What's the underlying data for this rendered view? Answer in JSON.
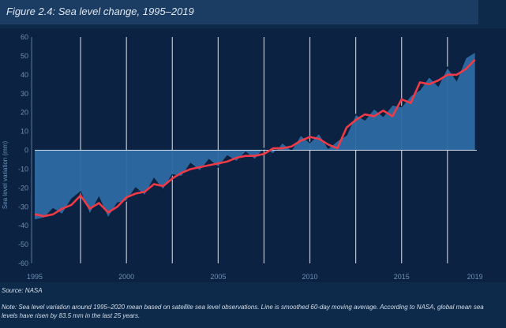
{
  "header": {
    "title": "Figure 2.4: Sea level change, 1995–2019"
  },
  "source": "Source: NASA",
  "note": "Note: Sea level variation around 1995–2020 mean based on satellite sea level observations. Line is smoothed 60-day moving average. According to NASA, global mean sea levels have risen by 83.5 mm in the last 25 years.",
  "colors": {
    "background": "#0e2a4a",
    "plot_background": "#0b2242",
    "area_fill": "#2d6aa3",
    "raw_dark": "#0a1d38",
    "smooth_line": "#ee3b47",
    "axis_text": "#6d8fb3",
    "grid": "#d8e2ee"
  },
  "chart_data": {
    "type": "area",
    "title": "Figure 2.4: Sea level change, 1995–2019",
    "ylabel": "Sea level variation (mm)",
    "xlabel": "",
    "xlim": [
      1995,
      2019.1
    ],
    "ylim": [
      -60,
      60
    ],
    "x_ticks": [
      1995,
      2000,
      2005,
      2010,
      2015,
      2019
    ],
    "y_ticks": [
      60,
      50,
      40,
      30,
      20,
      10,
      0,
      -10,
      -20,
      -30,
      -40,
      -50,
      -60
    ],
    "vertical_grid_years": [
      1997.5,
      2000,
      2002.5,
      2005,
      2007.5,
      2010,
      2012.5,
      2015,
      2017.5
    ],
    "grid": true,
    "series": [
      {
        "name": "Smoothed 60-day moving average",
        "x": [
          1995.0,
          1995.5,
          1996.0,
          1996.5,
          1997.0,
          1997.5,
          1998.0,
          1998.5,
          1999.0,
          1999.5,
          2000.0,
          2000.5,
          2001.0,
          2001.5,
          2002.0,
          2002.5,
          2003.0,
          2003.5,
          2004.0,
          2004.5,
          2005.0,
          2005.5,
          2006.0,
          2006.5,
          2007.0,
          2007.5,
          2008.0,
          2008.5,
          2009.0,
          2009.5,
          2010.0,
          2010.5,
          2011.0,
          2011.5,
          2012.0,
          2012.5,
          2013.0,
          2013.5,
          2014.0,
          2014.5,
          2015.0,
          2015.5,
          2016.0,
          2016.5,
          2017.0,
          2017.5,
          2018.0,
          2018.5,
          2019.0
        ],
        "values": [
          -34,
          -35,
          -34,
          -31,
          -29,
          -24,
          -31,
          -28,
          -33,
          -30,
          -25,
          -23,
          -22,
          -18,
          -19,
          -15,
          -12,
          -10,
          -9,
          -8,
          -7,
          -6,
          -4,
          -3,
          -3,
          -2,
          1,
          1,
          2,
          5,
          7,
          6,
          3,
          1,
          12,
          16,
          19,
          18,
          21,
          18,
          27,
          25,
          36,
          35,
          37,
          40,
          40,
          43,
          48
        ]
      },
      {
        "name": "Satellite sea level observations",
        "x": [
          1995.0,
          1995.5,
          1996.0,
          1996.5,
          1997.0,
          1997.5,
          1998.0,
          1998.5,
          1999.0,
          1999.5,
          2000.0,
          2000.5,
          2001.0,
          2001.5,
          2002.0,
          2002.5,
          2003.0,
          2003.5,
          2004.0,
          2004.5,
          2005.0,
          2005.5,
          2006.0,
          2006.5,
          2007.0,
          2007.5,
          2008.0,
          2008.5,
          2009.0,
          2009.5,
          2010.0,
          2010.5,
          2011.0,
          2011.5,
          2012.0,
          2012.5,
          2013.0,
          2013.5,
          2014.0,
          2014.5,
          2015.0,
          2015.5,
          2016.0,
          2016.5,
          2017.0,
          2017.5,
          2018.0,
          2018.5,
          2019.0
        ],
        "values": [
          -37,
          -36,
          -31,
          -34,
          -26,
          -22,
          -34,
          -25,
          -36,
          -28,
          -27,
          -20,
          -24,
          -15,
          -21,
          -13,
          -14,
          -7,
          -11,
          -5,
          -9,
          -3,
          -6,
          -1,
          -5,
          1,
          -2,
          4,
          0,
          8,
          4,
          9,
          1,
          5,
          8,
          19,
          16,
          22,
          18,
          24,
          23,
          29,
          32,
          39,
          34,
          44,
          37,
          49,
          52
        ]
      }
    ],
    "legend": "none"
  }
}
